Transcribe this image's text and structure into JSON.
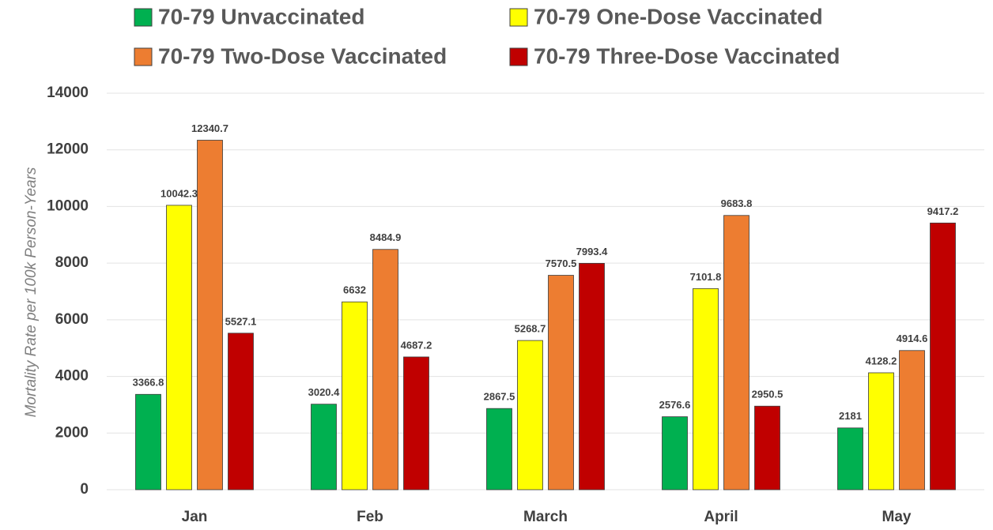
{
  "chart_data": {
    "type": "bar",
    "y_label": "Mortality Rate per 100k Person-Years",
    "categories": [
      "Jan",
      "Feb",
      "March",
      "April",
      "May"
    ],
    "series": [
      {
        "name": "70-79 Unvaccinated",
        "color": "#00b050",
        "values": [
          3366.8,
          3020.4,
          2867.5,
          2576.6,
          2181
        ]
      },
      {
        "name": "70-79 One-Dose Vaccinated",
        "color": "#ffff00",
        "values": [
          10042.3,
          6632,
          5268.7,
          7101.8,
          4128.2
        ]
      },
      {
        "name": "70-79 Two-Dose Vaccinated",
        "color": "#ed7d31",
        "values": [
          12340.7,
          8484.9,
          7570.5,
          9683.8,
          4914.6
        ]
      },
      {
        "name": "70-79 Three-Dose Vaccinated",
        "color": "#c00000",
        "values": [
          5527.1,
          4687.2,
          7993.4,
          2950.5,
          9417.2
        ]
      }
    ],
    "ylim": [
      0,
      14000
    ],
    "yticks": [
      0,
      2000,
      4000,
      6000,
      8000,
      10000,
      12000,
      14000
    ],
    "grid": true
  }
}
